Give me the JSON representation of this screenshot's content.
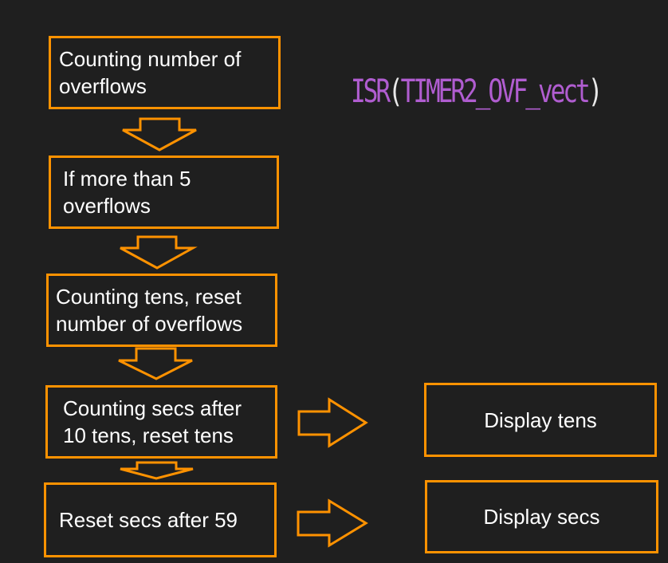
{
  "colors": {
    "background": "#1f1f1f",
    "accent": "#ff9200",
    "text": "#ffffff",
    "code_keyword": "#b05dd0"
  },
  "title": {
    "open_paren": "(",
    "isr": "ISR",
    "vector": "TIMER2_OVF_vect",
    "close_paren": ")"
  },
  "steps": [
    {
      "label": "Counting number of\noverflows"
    },
    {
      "label": "If more than 5\noverflows"
    },
    {
      "label": "Counting tens, reset\nnumber of overflows"
    },
    {
      "label": "Counting secs after\n10 tens, reset tens"
    },
    {
      "label": "Reset secs after 59"
    }
  ],
  "outputs": [
    {
      "label": "Display tens"
    },
    {
      "label": "Display secs"
    }
  ]
}
